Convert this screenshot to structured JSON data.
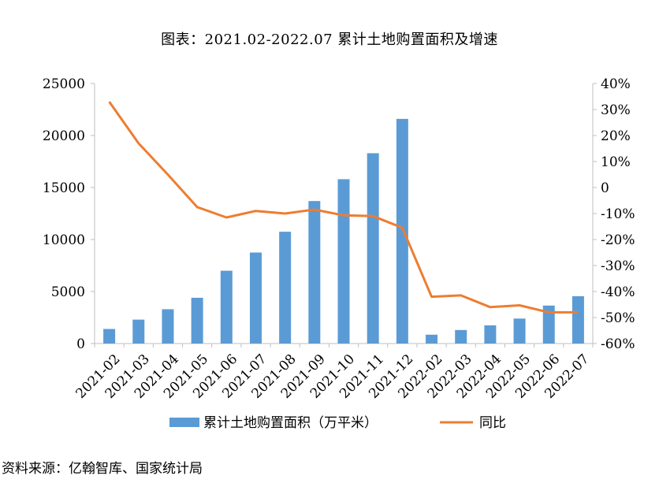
{
  "title": "图表：2021.02-2022.07 累计土地购置面积及增速",
  "source": "资料来源：亿翰智库、国家统计局",
  "colors": {
    "bar": "#5b9bd5",
    "line": "#ed7d31",
    "axis": "#bfbfbf"
  },
  "chart_data": {
    "type": "bar",
    "categories": [
      "2021-02",
      "2021-03",
      "2021-04",
      "2021-05",
      "2021-06",
      "2021-07",
      "2021-08",
      "2021-09",
      "2021-10",
      "2021-11",
      "2021-12",
      "2022-02",
      "2022-03",
      "2022-04",
      "2022-05",
      "2022-06",
      "2022-07"
    ],
    "series": [
      {
        "name": "累计土地购置面积（万平米）",
        "type": "bar",
        "axis": "left",
        "values": [
          1400,
          2300,
          3300,
          4400,
          7000,
          8750,
          10750,
          13700,
          15800,
          18300,
          21600,
          850,
          1300,
          1750,
          2400,
          3650,
          4550
        ]
      },
      {
        "name": "同比",
        "type": "line",
        "axis": "right",
        "values": [
          33,
          17,
          5,
          -7.5,
          -11.5,
          -9,
          -10,
          -8.5,
          -10.7,
          -11,
          -15.5,
          -42,
          -41.5,
          -46,
          -45.3,
          -48,
          -48
        ]
      }
    ],
    "y_left": {
      "min": 0,
      "max": 25000,
      "ticks": [
        "0",
        "5000",
        "10000",
        "15000",
        "20000",
        "25000"
      ]
    },
    "y_right": {
      "min": -60,
      "max": 40,
      "ticks": [
        "-60%",
        "-50%",
        "-40%",
        "-30%",
        "-20%",
        "-10%",
        "0",
        "10%",
        "20%",
        "30%",
        "40%"
      ]
    },
    "grid": false,
    "legend": "bottom"
  }
}
